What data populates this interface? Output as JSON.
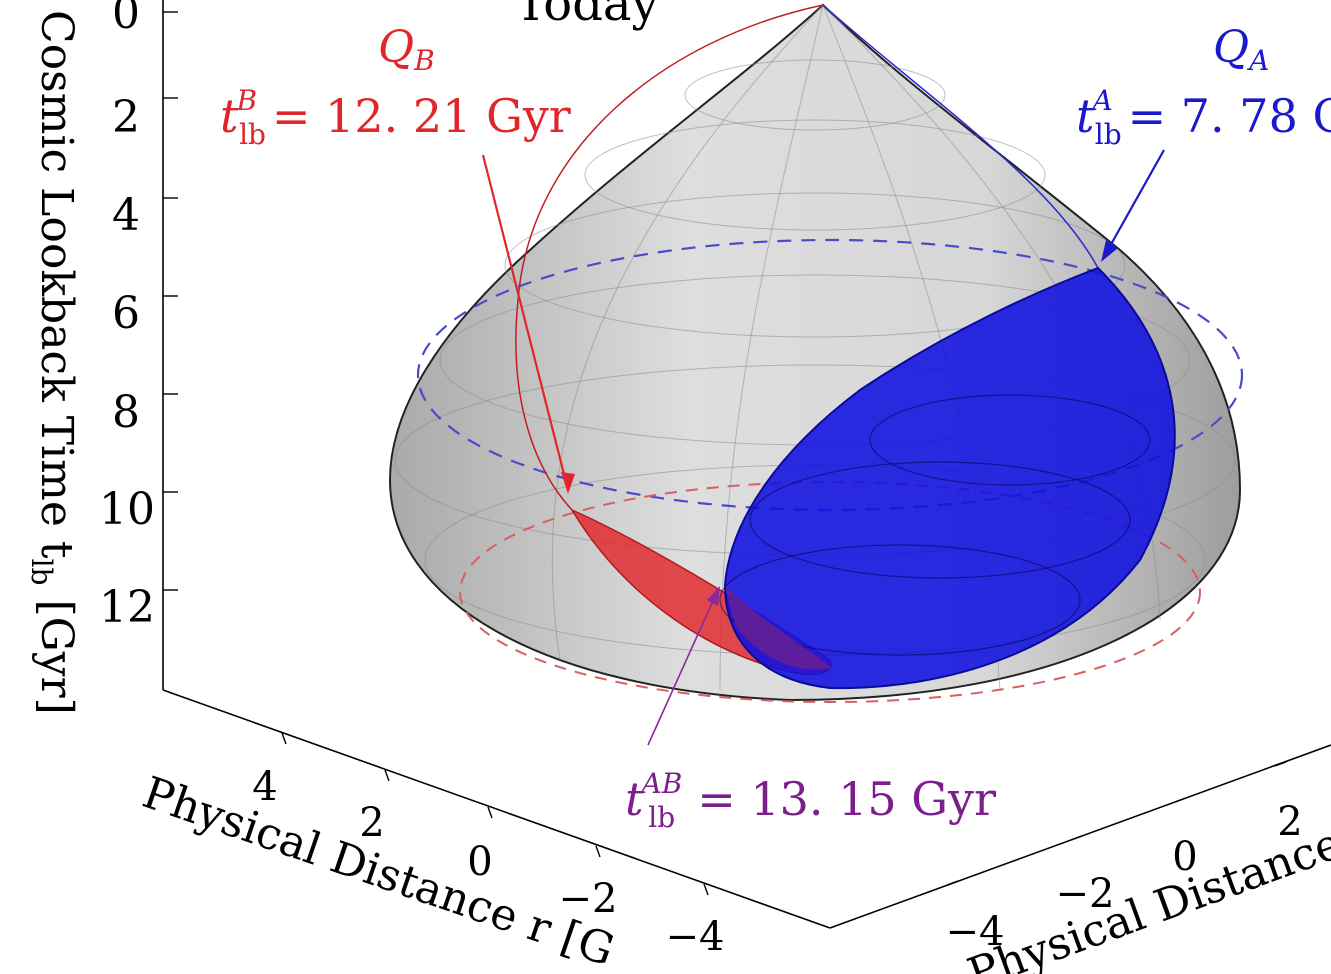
{
  "title_partial": "Today",
  "axis_v": {
    "label": "Cosmic Lookback Time t",
    "label_sub": "lb",
    "label_unit": " [Gyr]",
    "ticks": [
      "0",
      "2",
      "4",
      "6",
      "8",
      "10",
      "12"
    ]
  },
  "axis_left": {
    "label": "Physical Distance r [G",
    "ticks": [
      "4",
      "2",
      "0",
      "−2",
      "−4"
    ]
  },
  "axis_right": {
    "label": "Physical Distance r",
    "ticks": [
      "−4",
      "−2",
      "0",
      "2"
    ]
  },
  "annot_b": {
    "name": "Q",
    "name_sub": "B",
    "t": "t",
    "t_sub": "lb",
    "t_sup": "B",
    "value": "= 12. 21 Gyr",
    "color": "#e0262b"
  },
  "annot_a": {
    "name": "Q",
    "name_sub": "A",
    "t": "t",
    "t_sub": "lb",
    "t_sup": "A",
    "value": "= 7. 78 G",
    "color": "#1a1acc"
  },
  "annot_ab": {
    "t": "t",
    "t_sub": "lb",
    "t_sup": "AB",
    "value": "= 13. 15 Gyr",
    "color": "#7a1f8c"
  },
  "colors": {
    "red": "#e0262b",
    "blue": "#1a1ad8",
    "purple": "#8a2a9a",
    "surface": "#d0d0d0"
  }
}
